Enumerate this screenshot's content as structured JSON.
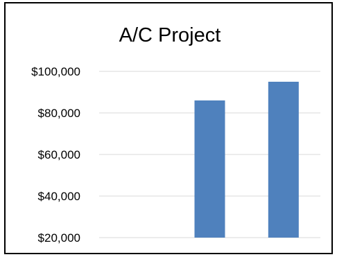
{
  "chart_data": {
    "type": "bar",
    "title": "A/C Project",
    "categories": [
      "",
      "",
      ""
    ],
    "values": [
      null,
      86000,
      95000
    ],
    "yticks": [
      "$100,000",
      "$80,000",
      "$60,000",
      "$40,000",
      "$20,000"
    ],
    "ytick_values": [
      100000,
      80000,
      60000,
      40000,
      20000
    ],
    "ylim": [
      20000,
      100000
    ],
    "grid": true,
    "colors": {
      "bar": "#4F81BD",
      "grid": "#D9D9D9",
      "frame": "#000000"
    }
  }
}
